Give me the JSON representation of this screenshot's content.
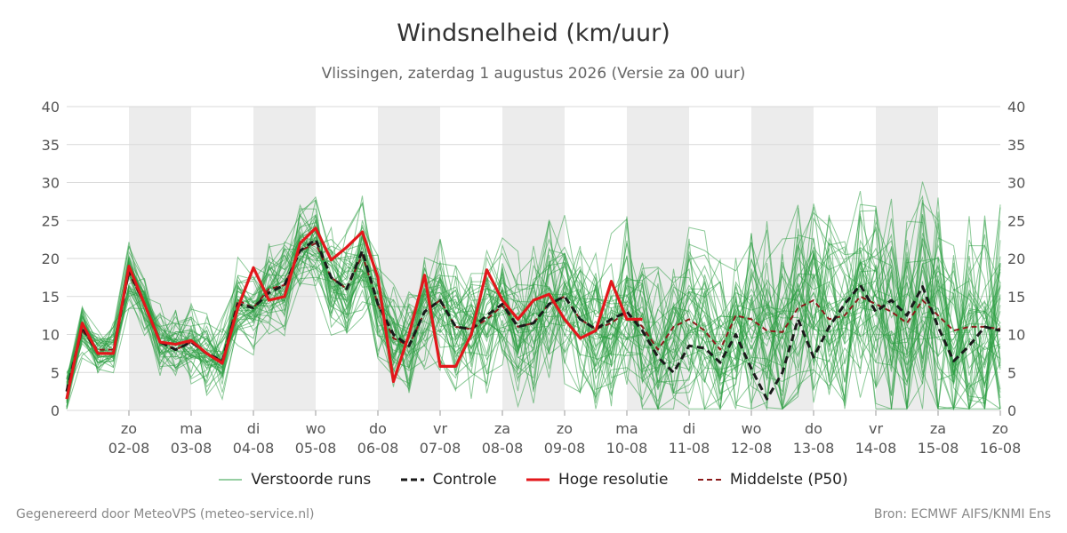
{
  "colors": {
    "members": "#2e9e44",
    "control": "#1a1a1a",
    "highres": "#e3171b",
    "median": "#8b1a1a",
    "weekend_band": "#ececec",
    "grid": "#d9d9d9"
  },
  "chart_data": {
    "type": "line",
    "title": "Windsnelheid (km/uur)",
    "subtitle": "Vlissingen, zaterdag  1 augustus 2026 (Versie za 00 uur)",
    "ylim": [
      0,
      40
    ],
    "yticks": [
      0,
      5,
      10,
      15,
      20,
      25,
      30,
      35,
      40
    ],
    "x_unit": "days since 01-08 00h",
    "xlim": [
      0,
      15
    ],
    "xticks": [
      {
        "day": "zo",
        "date": "02-08"
      },
      {
        "day": "ma",
        "date": "03-08"
      },
      {
        "day": "di",
        "date": "04-08"
      },
      {
        "day": "wo",
        "date": "05-08"
      },
      {
        "day": "do",
        "date": "06-08"
      },
      {
        "day": "vr",
        "date": "07-08"
      },
      {
        "day": "za",
        "date": "08-08"
      },
      {
        "day": "zo",
        "date": "09-08"
      },
      {
        "day": "ma",
        "date": "10-08"
      },
      {
        "day": "di",
        "date": "11-08"
      },
      {
        "day": "wo",
        "date": "12-08"
      },
      {
        "day": "do",
        "date": "13-08"
      },
      {
        "day": "vr",
        "date": "14-08"
      },
      {
        "day": "za",
        "date": "15-08"
      },
      {
        "day": "zo",
        "date": "16-08"
      }
    ],
    "grey_bands": [
      [
        1,
        2
      ],
      [
        3,
        4
      ],
      [
        5,
        6
      ],
      [
        7,
        8
      ],
      [
        9,
        10
      ],
      [
        11,
        12
      ],
      [
        13,
        14
      ]
    ],
    "legend": [
      {
        "name": "Verstoorde runs",
        "key": "members"
      },
      {
        "name": "Controle",
        "key": "control"
      },
      {
        "name": "Hoge resolutie",
        "key": "highres"
      },
      {
        "name": "Middelste (P50)",
        "key": "median"
      }
    ],
    "highres": {
      "x": [
        0,
        0.25,
        0.5,
        0.75,
        1.0,
        1.25,
        1.5,
        1.75,
        2.0,
        2.25,
        2.5,
        2.75,
        3.0,
        3.25,
        3.5,
        3.75,
        4.0,
        4.25,
        4.5,
        4.75,
        5.0,
        5.25,
        5.5,
        5.75,
        6.0,
        6.25,
        6.5,
        6.75,
        7.0,
        7.25,
        7.5,
        7.75,
        8.0,
        8.25,
        8.5,
        8.75,
        9.0,
        9.25
      ],
      "y": [
        1.5,
        11.5,
        7.5,
        7.5,
        19,
        14,
        9,
        8.7,
        9.2,
        7.5,
        6.2,
        13.5,
        18.8,
        14.5,
        15,
        22,
        24,
        19.8,
        21.5,
        23.5,
        17.5,
        3.8,
        10,
        17.8,
        5.8,
        5.8,
        10,
        18.5,
        14.5,
        12,
        14.5,
        15.3,
        12,
        9.5,
        10.5,
        17,
        12,
        12
      ]
    },
    "median": {
      "x": [
        0,
        0.25,
        0.5,
        0.75,
        1.0,
        1.25,
        1.5,
        1.75,
        2.0,
        2.25,
        2.5,
        2.75,
        3.0,
        3.25,
        3.5,
        3.75,
        4.0,
        4.25,
        4.5,
        4.75,
        5.0,
        5.25,
        5.5,
        5.75,
        6.0,
        6.25,
        6.5,
        6.75,
        7.0,
        7.25,
        7.5,
        7.75,
        8.0,
        8.25,
        8.5,
        8.75,
        9.0,
        9.25,
        9.5,
        9.75,
        10.0,
        10.25,
        10.5,
        10.75,
        11.0,
        11.25,
        11.5,
        11.75,
        12.0,
        12.25,
        12.5,
        12.75,
        13.0,
        13.25,
        13.5,
        13.75,
        14.0,
        14.25,
        14.5,
        14.75,
        15.0
      ],
      "y": [
        2.5,
        10.5,
        8,
        8,
        18,
        14,
        9,
        8,
        9,
        7.5,
        6.5,
        14.5,
        13.5,
        16,
        16.5,
        21,
        22,
        17.5,
        16,
        20.5,
        14,
        9.5,
        8.5,
        13,
        14.5,
        11,
        10.7,
        12,
        13.8,
        11,
        11.5,
        14,
        15,
        12,
        10.7,
        11.5,
        13,
        11,
        8,
        11,
        12,
        10.5,
        8,
        12.5,
        12,
        10.5,
        10.3,
        13.5,
        14.5,
        12,
        12.5,
        15,
        14,
        13,
        11.5,
        14.5,
        12.5,
        10.5,
        11,
        11,
        10.7
      ]
    },
    "control": {
      "x": [
        0,
        0.25,
        0.5,
        0.75,
        1.0,
        1.25,
        1.5,
        1.75,
        2.0,
        2.25,
        2.5,
        2.75,
        3.0,
        3.25,
        3.5,
        3.75,
        4.0,
        4.25,
        4.5,
        4.75,
        5.0,
        5.25,
        5.5,
        5.75,
        6.0,
        6.25,
        6.5,
        6.75,
        7.0,
        7.25,
        7.5,
        7.75,
        8.0,
        8.25,
        8.5,
        8.75,
        9.0,
        9.25,
        9.5,
        9.75,
        10.0,
        10.25,
        10.5,
        10.75,
        11.0,
        11.25,
        11.5,
        11.75,
        12.0,
        12.25,
        12.5,
        12.75,
        13.0,
        13.25,
        13.5,
        13.75,
        14.0,
        14.25,
        14.5,
        14.75,
        15.0
      ],
      "y": [
        2.5,
        11,
        7.5,
        7.5,
        18.5,
        14,
        9,
        8,
        9,
        7.5,
        6.5,
        14,
        13.5,
        15.5,
        16.5,
        21,
        22.5,
        17.5,
        16,
        21,
        14,
        10,
        8.5,
        13,
        14.5,
        11,
        10.7,
        12.5,
        14,
        11,
        11.5,
        14,
        15,
        12,
        10.7,
        12,
        13,
        10.5,
        7,
        5,
        8.5,
        8.2,
        6.3,
        10,
        5.5,
        1.5,
        5,
        12,
        7,
        11,
        14,
        16.5,
        13,
        14.5,
        12.5,
        16.3,
        11,
        6.5,
        8.5,
        11,
        10.5
      ]
    },
    "members_count": 45
  },
  "footer": {
    "left": "Gegenereerd door MeteoVPS (meteo-service.nl)",
    "right": "Bron: ECMWF AIFS/KNMI Ens"
  }
}
